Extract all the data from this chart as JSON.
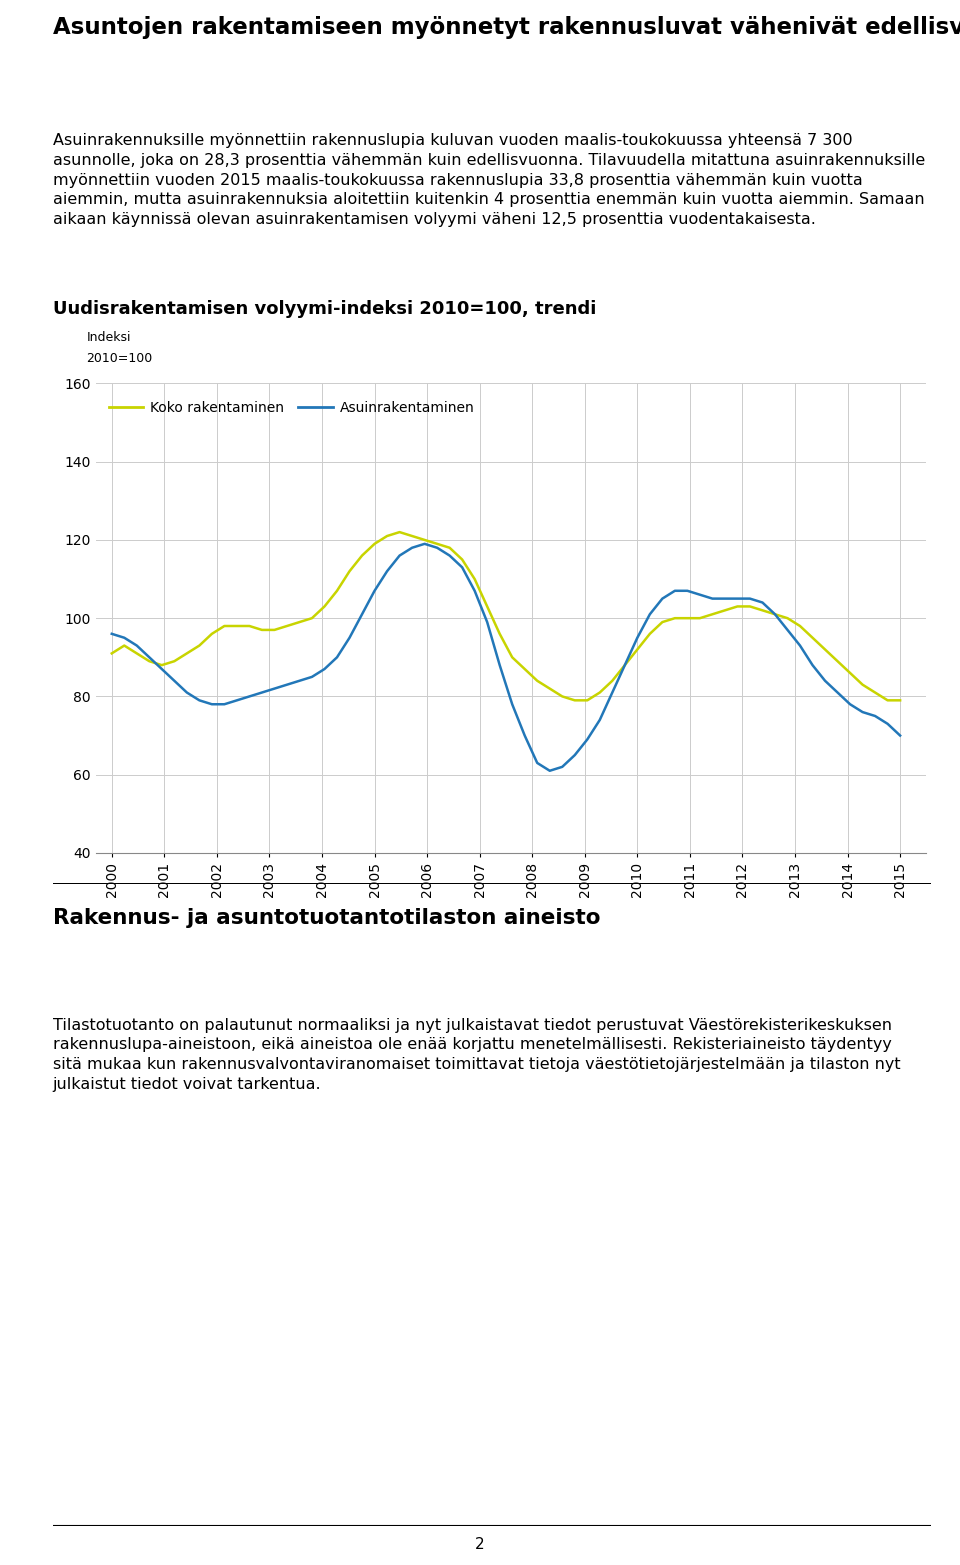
{
  "title": "Asuntojen rakentamiseen myönnetyt rakennusluvat vähenivät edellisvuodesta",
  "paragraph1": "Asuinrakennuksille myönnettiin rakennuslupia kuluvan vuoden maalis-toukokuussa yhteensä 7 300\nasunnolle, joka on 28,3 prosenttia vähemmän kuin edellisvuonna. Tilavuudella mitattuna asuinrakennuksille\nmyönnettiin vuoden 2015 maalis-toukokuussa rakennuslupia 33,8 prosenttia vähemmän kuin vuotta\naiemmin, mutta asuinrakennuksia aloitettiin kuitenkin 4 prosenttia enemmän kuin vuotta aiemmin. Samaan\naikaan käynnissä olevan asuinrakentamisen volyymi väheni 12,5 prosenttia vuodentakaisesta.",
  "chart_title": "Uudisrakentamisen volyymi-indeksi 2010=100, trendi",
  "ylabel_line1": "Indeksi",
  "ylabel_line2": "2010=100",
  "ylim": [
    40,
    160
  ],
  "yticks": [
    40,
    60,
    80,
    100,
    120,
    140,
    160
  ],
  "years": [
    "2000",
    "2001",
    "2002",
    "2003",
    "2004",
    "2005",
    "2006",
    "2007",
    "2008",
    "2009",
    "2010",
    "2011",
    "2012",
    "2013",
    "2014",
    "2015"
  ],
  "legend_koko": "Koko rakentaminen",
  "legend_asuin": "Asuinrakentaminen",
  "color_koko": "#c8d400",
  "color_asuin": "#2277b8",
  "section2_title": "Rakennus- ja asuntotuotantotilaston aineisto",
  "section2_text": "Tilastotuotanto on palautunut normaaliksi ja nyt julkaistavat tiedot perustuvat Väestörekisterikeskuksen\nrakennuslupa-aineistoon, eikä aineistoa ole enää korjattu menetelmällisesti. Rekisteriaineisto täydentyy\nsitä mukaa kun rakennusvalvontaviranomaiset toimittavat tietoja väestötietojärjestelmään ja tilaston nyt\njulkaistut tiedot voivat tarkentua.",
  "footer_text": "2",
  "koko_data": [
    91,
    93,
    91,
    89,
    88,
    89,
    91,
    93,
    96,
    98,
    98,
    98,
    97,
    97,
    98,
    99,
    100,
    103,
    107,
    112,
    116,
    119,
    121,
    122,
    121,
    120,
    119,
    118,
    115,
    110,
    103,
    96,
    90,
    87,
    84,
    82,
    80,
    79,
    79,
    81,
    84,
    88,
    92,
    96,
    99,
    100,
    100,
    100,
    101,
    102,
    103,
    103,
    102,
    101,
    100,
    98,
    95,
    92,
    89,
    86,
    83,
    81,
    79,
    79
  ],
  "asuin_data": [
    96,
    95,
    93,
    90,
    87,
    84,
    81,
    79,
    78,
    78,
    79,
    80,
    81,
    82,
    83,
    84,
    85,
    87,
    90,
    95,
    101,
    107,
    112,
    116,
    118,
    119,
    118,
    116,
    113,
    107,
    99,
    88,
    78,
    70,
    63,
    61,
    62,
    65,
    69,
    74,
    81,
    88,
    95,
    101,
    105,
    107,
    107,
    106,
    105,
    105,
    105,
    105,
    104,
    101,
    97,
    93,
    88,
    84,
    81,
    78,
    76,
    75,
    73,
    70
  ]
}
